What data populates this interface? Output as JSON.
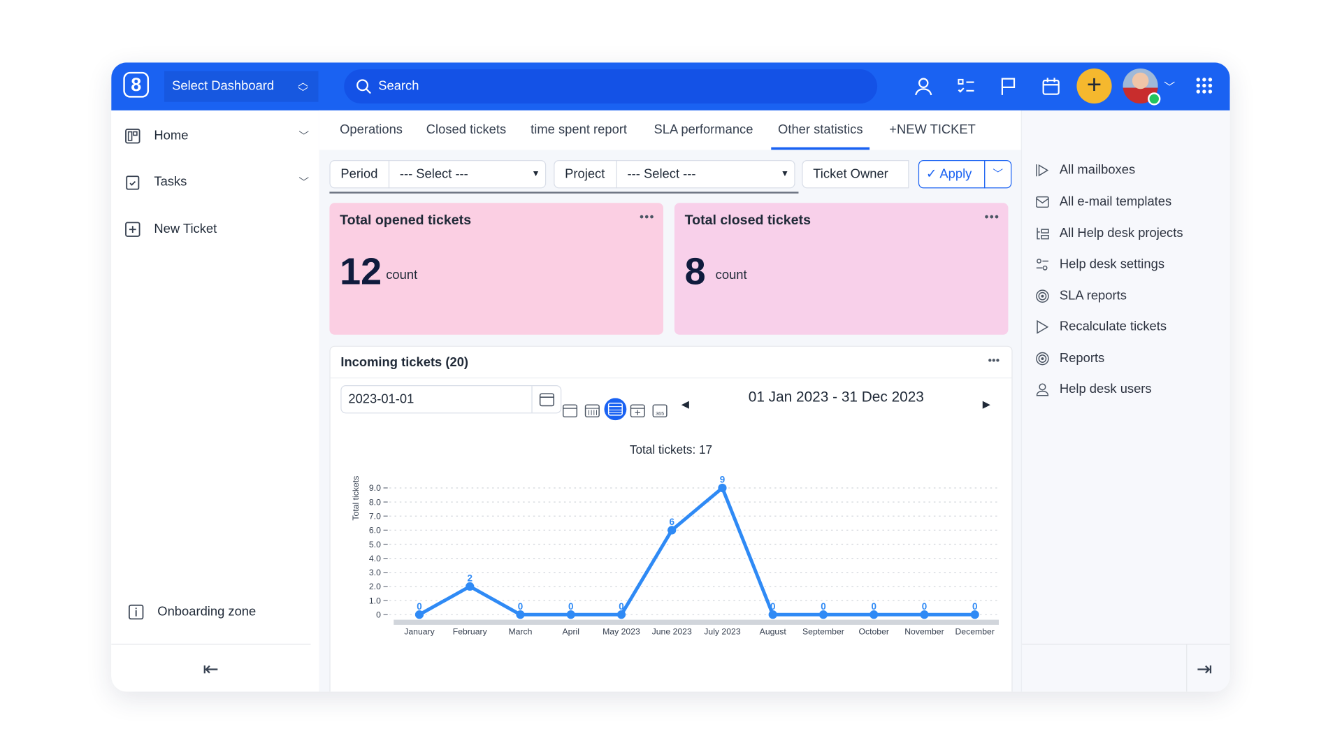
{
  "header": {
    "logo": "8",
    "dashboard_select": "Select Dashboard",
    "search_placeholder": "Search",
    "icons": [
      "user-icon",
      "task-list-icon",
      "flag-icon",
      "calendar-icon",
      "plus-icon",
      "avatar",
      "apps-grid-icon"
    ],
    "accent": "#1a62f2",
    "plus_color": "#f5b82e"
  },
  "sidebar": {
    "items": [
      {
        "label": "Home",
        "icon": "dashboard-icon"
      },
      {
        "label": "Tasks",
        "icon": "clipboard-icon"
      },
      {
        "label": "New Ticket",
        "icon": "plus-square-icon"
      }
    ],
    "onboarding": "Onboarding zone"
  },
  "tabs": [
    {
      "label": "Operations"
    },
    {
      "label": "Closed tickets"
    },
    {
      "label": "time spent report"
    },
    {
      "label": "SLA performance"
    },
    {
      "label": "Other statistics",
      "active": true
    },
    {
      "label": "+NEW TICKET"
    }
  ],
  "filters": {
    "period_label": "Period",
    "period_value": "--- Select ---",
    "project_label": "Project",
    "project_value": "--- Select ---",
    "owner_label": "Ticket Owner",
    "apply": "Apply"
  },
  "cards": [
    {
      "title": "Total opened tickets",
      "value": "12",
      "unit": "count",
      "color": "#fbcfe3"
    },
    {
      "title": "Total closed tickets",
      "value": "8",
      "unit": "count",
      "color": "#f8d0ea"
    }
  ],
  "incoming": {
    "title": "Incoming tickets (20)",
    "date_value": "2023-01-01",
    "range": "01 Jan 2023 - 31 Dec 2023",
    "total": "Total tickets: 17"
  },
  "chart_data": {
    "type": "line",
    "title": "Total tickets: 17",
    "ylabel": "Total tickets",
    "xlabel": "",
    "categories": [
      "January",
      "February",
      "March",
      "April",
      "May 2023",
      "June 2023",
      "July 2023",
      "August",
      "September",
      "October",
      "November",
      "December"
    ],
    "values": [
      0,
      2,
      0,
      0,
      0,
      6,
      9,
      0,
      0,
      0,
      0,
      0
    ],
    "yticks": [
      "0",
      "1.0",
      "2.0",
      "3.0",
      "4.0",
      "5.0",
      "6.0",
      "7.0",
      "8.0",
      "9.0"
    ],
    "ylim": [
      0,
      9
    ],
    "grid": true,
    "color": "#2f8af5"
  },
  "right_panel": {
    "items": [
      {
        "label": "All mailboxes",
        "icon": "mailbox-icon"
      },
      {
        "label": "All e-mail templates",
        "icon": "mail-icon"
      },
      {
        "label": "All Help desk projects",
        "icon": "projects-icon"
      },
      {
        "label": "Help desk settings",
        "icon": "settings-sliders-icon"
      },
      {
        "label": "SLA reports",
        "icon": "target-icon"
      },
      {
        "label": "Recalculate tickets",
        "icon": "play-icon"
      },
      {
        "label": "Reports",
        "icon": "target-icon"
      },
      {
        "label": "Help desk users",
        "icon": "user-icon"
      }
    ]
  }
}
